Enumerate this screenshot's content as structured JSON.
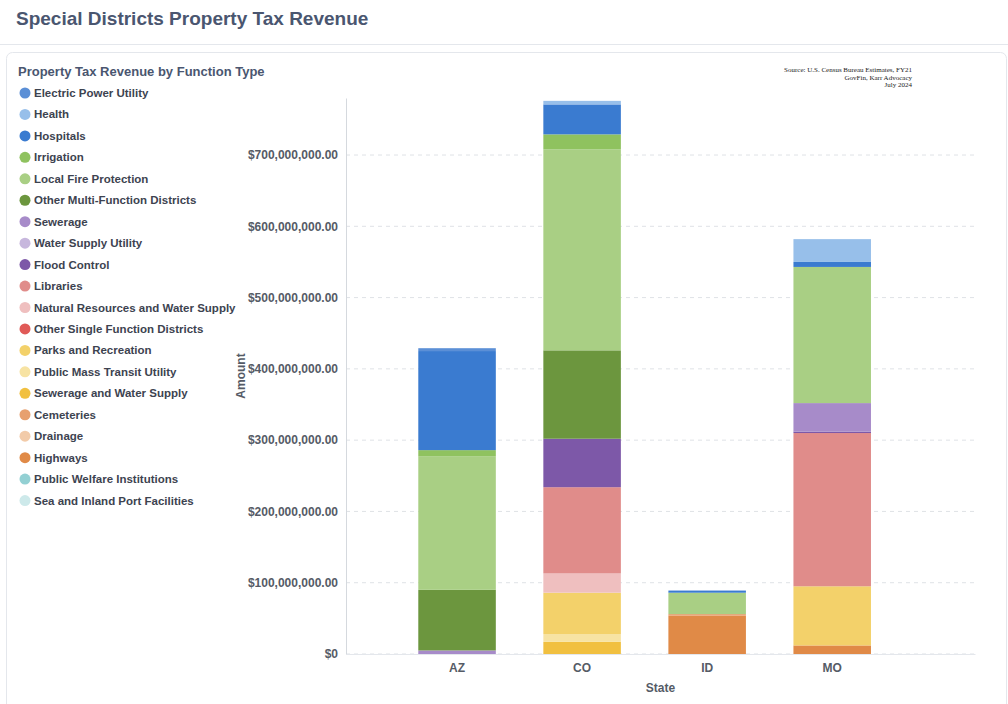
{
  "chart_data": {
    "type": "bar",
    "title": "Special Districts Property Tax Revenue",
    "legend_title": "Property Tax Revenue by Function Type",
    "annotations": [
      "Source:  U.S. Census Bureau Estimates, FY21",
      "GovFin, Karr Advocacy",
      "July 2024"
    ],
    "x_label": "State",
    "y_label": "Amount",
    "categories": [
      "AZ",
      "CO",
      "ID",
      "MO"
    ],
    "stacked": true,
    "grid": true,
    "legend": "top-left",
    "ylim": [
      0,
      780000000
    ],
    "yticks": [
      {
        "value": 0,
        "label": "$0"
      },
      {
        "value": 100000000,
        "label": "$100,000,000.00"
      },
      {
        "value": 200000000,
        "label": "$200,000,000.00"
      },
      {
        "value": 300000000,
        "label": "$300,000,000.00"
      },
      {
        "value": 400000000,
        "label": "$400,000,000.00"
      },
      {
        "value": 500000000,
        "label": "$500,000,000.00"
      },
      {
        "value": 600000000,
        "label": "$600,000,000.00"
      },
      {
        "value": 700000000,
        "label": "$700,000,000.00"
      }
    ],
    "series": [
      {
        "name": "Electric Power Utility",
        "color": "#5b8fd6",
        "values": [
          4000000,
          0,
          0,
          0
        ]
      },
      {
        "name": "Health",
        "color": "#97bfea",
        "values": [
          0,
          5000000,
          0,
          32000000
        ]
      },
      {
        "name": "Hospitals",
        "color": "#3a7bd0",
        "values": [
          139000000,
          42000000,
          3000000,
          7000000
        ]
      },
      {
        "name": "Irrigation",
        "color": "#8fc25f",
        "values": [
          9000000,
          21000000,
          0,
          0
        ]
      },
      {
        "name": "Local Fire Protection",
        "color": "#a9cf84",
        "values": [
          187000000,
          282000000,
          30000000,
          191000000
        ]
      },
      {
        "name": "Other Multi-Function Districts",
        "color": "#6c963e",
        "values": [
          85000000,
          124000000,
          0,
          0
        ]
      },
      {
        "name": "Sewerage",
        "color": "#a78bc9",
        "values": [
          5000000,
          0,
          0,
          40000000
        ]
      },
      {
        "name": "Water Supply Utility",
        "color": "#c7b7dd",
        "values": [
          0,
          0,
          0,
          0
        ]
      },
      {
        "name": "Flood Control",
        "color": "#7d58a8",
        "values": [
          0,
          68000000,
          0,
          2000000
        ]
      },
      {
        "name": "Libraries",
        "color": "#e08c8a",
        "values": [
          0,
          121000000,
          0,
          215000000
        ]
      },
      {
        "name": "Natural Resources and Water Supply",
        "color": "#efbfbf",
        "values": [
          0,
          27000000,
          0,
          0
        ]
      },
      {
        "name": "Other Single Function Districts",
        "color": "#e05a57",
        "values": [
          0,
          0,
          0,
          0
        ]
      },
      {
        "name": "Parks and Recreation",
        "color": "#f3d16a",
        "values": [
          0,
          58000000,
          0,
          83000000
        ]
      },
      {
        "name": "Public Mass Transit Utility",
        "color": "#f7e3a3",
        "values": [
          0,
          11000000,
          0,
          0
        ]
      },
      {
        "name": "Sewerage and Water Supply",
        "color": "#f1c040",
        "values": [
          0,
          17000000,
          0,
          0
        ]
      },
      {
        "name": "Cemeteries",
        "color": "#e7a06f",
        "values": [
          0,
          0,
          2000000,
          0
        ]
      },
      {
        "name": "Drainage",
        "color": "#f2cba9",
        "values": [
          0,
          0,
          0,
          0
        ]
      },
      {
        "name": "Highways",
        "color": "#e08a47",
        "values": [
          0,
          0,
          54000000,
          12000000
        ]
      },
      {
        "name": "Public Welfare Institutions",
        "color": "#93d0d3",
        "values": [
          0,
          0,
          0,
          0
        ]
      },
      {
        "name": "Sea and Inland Port Facilities",
        "color": "#cde9ea",
        "values": [
          0,
          0,
          0,
          0
        ]
      }
    ]
  }
}
